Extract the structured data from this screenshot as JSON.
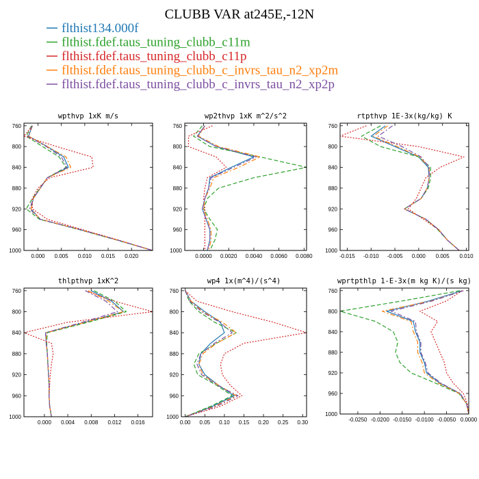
{
  "figure": {
    "title": "CLUBB VAR at245E,-12N"
  },
  "legend": [
    {
      "label": "flthist134.000f",
      "color": "#1f77b4",
      "dash": "solid"
    },
    {
      "label": "flthist.fdef.taus_tuning_clubb_c11m",
      "color": "#2ca02c",
      "dash": "dashed"
    },
    {
      "label": "flthist.fdef.taus_tuning_clubb_c11p",
      "color": "#d62728",
      "dash": "dotted"
    },
    {
      "label": "flthist.fdef.taus_tuning_clubb_c_invrs_tau_n2_xp2m",
      "color": "#ff7f0e",
      "dash": "dashdot"
    },
    {
      "label": "flthist.fdef.taus_tuning_clubb_c_invrs_tau_n2_xp2p",
      "color": "#7b4fa0",
      "dash": "dashdot"
    }
  ],
  "chart_data": [
    {
      "type": "line",
      "title": "wpthvp  1xK m/s",
      "y": [
        760,
        780,
        800,
        820,
        840,
        860,
        880,
        900,
        920,
        940,
        960,
        980,
        1000
      ],
      "xlim": [
        -0.003,
        0.0245
      ],
      "ylim": [
        1000,
        755
      ],
      "xticks": [
        0.0,
        0.005,
        0.01,
        0.015,
        0.02
      ],
      "xtick_labels": [
        "0.000",
        "0.005",
        "0.010",
        "0.015",
        "0.020"
      ],
      "yticks": [
        760,
        800,
        840,
        880,
        920,
        960,
        1000
      ],
      "series": [
        {
          "values": [
            -0.0012,
            -0.002,
            0.002,
            0.0055,
            0.0065,
            0.002,
            0.0005,
            -0.001,
            -0.0015,
            0.0005,
            0.009,
            0.017,
            0.0245
          ]
        },
        {
          "values": [
            -0.0014,
            -0.0025,
            0.001,
            0.0045,
            0.006,
            0.002,
            0.0004,
            -0.0012,
            -0.0025,
            0.0003,
            0.0088,
            0.0168,
            0.0245
          ]
        },
        {
          "values": [
            -0.0012,
            -0.003,
            0.004,
            0.0115,
            0.0118,
            0.0025,
            0.0,
            -0.0012,
            -0.0012,
            0.002,
            0.0095,
            0.0172,
            0.0245
          ]
        },
        {
          "values": [
            -0.0012,
            -0.002,
            0.002,
            0.006,
            0.007,
            0.002,
            0.0005,
            -0.001,
            -0.0015,
            0.0005,
            0.009,
            0.017,
            0.0245
          ]
        },
        {
          "values": [
            -0.0012,
            -0.0022,
            0.0018,
            0.005,
            0.0062,
            0.002,
            0.0005,
            -0.001,
            -0.0018,
            0.0005,
            0.009,
            0.017,
            0.0245
          ]
        }
      ]
    },
    {
      "type": "line",
      "title": "wp2thvp  1xK m^2/s^2",
      "y": [
        760,
        780,
        800,
        820,
        840,
        860,
        880,
        900,
        920,
        940,
        960,
        980,
        1000
      ],
      "xlim": [
        -0.0015,
        0.0082
      ],
      "ylim": [
        1000,
        755
      ],
      "xticks": [
        0.0,
        0.002,
        0.004,
        0.006,
        0.008
      ],
      "xtick_labels": [
        "0.0000",
        "0.0020",
        "0.0040",
        "0.0060",
        "0.0080"
      ],
      "yticks": [
        760,
        800,
        840,
        880,
        920,
        960,
        1000
      ],
      "series": [
        {
          "values": [
            0.0001,
            -0.0005,
            0.001,
            0.004,
            0.0022,
            0.0005,
            0.0004,
            0.0001,
            -0.0001,
            0.0002,
            0.0005,
            0.0005,
            0.0003
          ]
        },
        {
          "values": [
            -0.0001,
            -0.0008,
            0.0005,
            0.0045,
            0.0082,
            0.004,
            0.0012,
            0.0003,
            0.0,
            0.0005,
            0.0011,
            0.0009,
            0.0005
          ]
        },
        {
          "values": [
            0.0007,
            -0.0012,
            -0.0012,
            0.001,
            0.0018,
            0.0003,
            0.0001,
            0.0,
            0.0001,
            0.0001,
            0.0001,
            0.0001,
            0.0001
          ]
        },
        {
          "values": [
            0.0001,
            -0.0004,
            0.0012,
            0.0045,
            0.0028,
            0.0008,
            0.0005,
            0.0001,
            0.0,
            0.0003,
            0.0006,
            0.0006,
            0.0004
          ]
        },
        {
          "values": [
            0.0001,
            -0.0005,
            0.001,
            0.0042,
            0.0024,
            0.0006,
            0.0004,
            0.0001,
            -0.0001,
            0.0002,
            0.0005,
            0.0005,
            0.0003
          ]
        }
      ]
    },
    {
      "type": "line",
      "title": "rtpthvp  1E-3x(kg/kg) K",
      "y": [
        760,
        780,
        800,
        820,
        840,
        860,
        880,
        900,
        920,
        940,
        960,
        980,
        1000
      ],
      "xlim": [
        -0.0165,
        0.0105
      ],
      "ylim": [
        1000,
        755
      ],
      "xticks": [
        -0.015,
        -0.01,
        -0.005,
        0.0,
        0.005,
        0.01
      ],
      "xtick_labels": [
        "-0.015",
        "-0.010",
        "-0.005",
        "0.000",
        "0.005",
        "0.010"
      ],
      "yticks": [
        760,
        800,
        840,
        880,
        920,
        960,
        1000
      ],
      "series": [
        {
          "values": [
            -0.007,
            -0.01,
            -0.005,
            0.0,
            0.002,
            0.0022,
            0.0018,
            0.0005,
            -0.003,
            0.0015,
            0.0042,
            0.006,
            0.0085
          ]
        },
        {
          "values": [
            -0.008,
            -0.012,
            -0.008,
            0.0,
            0.0025,
            0.0025,
            0.002,
            0.0005,
            -0.003,
            0.0015,
            0.004,
            0.006,
            0.0085
          ]
        },
        {
          "values": [
            -0.011,
            -0.0165,
            0.0,
            0.0095,
            0.0045,
            0.0015,
            0.0005,
            -0.0005,
            -0.0022,
            0.001,
            0.0042,
            0.006,
            0.0085
          ]
        },
        {
          "values": [
            -0.0065,
            -0.0095,
            -0.0045,
            0.0002,
            0.0022,
            0.0022,
            0.0018,
            0.0005,
            -0.003,
            0.0015,
            0.0042,
            0.006,
            0.0085
          ]
        },
        {
          "values": [
            -0.0055,
            -0.0085,
            -0.0035,
            0.0005,
            0.0022,
            0.0022,
            0.0018,
            0.0005,
            -0.003,
            0.0015,
            0.0042,
            0.006,
            0.0085
          ]
        }
      ]
    },
    {
      "type": "line",
      "title": "thlpthvp  1xK^2",
      "y": [
        760,
        780,
        800,
        820,
        840,
        860,
        880,
        900,
        920,
        940,
        960,
        980,
        1000
      ],
      "xlim": [
        -0.0035,
        0.0185
      ],
      "ylim": [
        1000,
        755
      ],
      "xticks": [
        0.0,
        0.004,
        0.008,
        0.012,
        0.016
      ],
      "xtick_labels": [
        "0.000",
        "0.004",
        "0.008",
        "0.012",
        "0.016"
      ],
      "yticks": [
        760,
        800,
        840,
        880,
        920,
        960,
        1000
      ],
      "series": [
        {
          "values": [
            0.008,
            0.0115,
            0.0135,
            0.007,
            0.0002,
            0.0003,
            0.0005,
            0.0006,
            0.0007,
            0.0008,
            0.0008,
            0.0009,
            0.0012
          ]
        },
        {
          "values": [
            0.0085,
            0.012,
            0.014,
            0.0075,
            0.0005,
            0.0004,
            0.0005,
            0.0006,
            0.0007,
            0.0008,
            0.0008,
            0.0009,
            0.0012
          ]
        },
        {
          "values": [
            0.007,
            0.012,
            0.0185,
            0.004,
            -0.0035,
            0.0012,
            0.0015,
            0.0012,
            0.001,
            0.0009,
            0.0008,
            0.0009,
            0.0012
          ]
        },
        {
          "values": [
            0.0075,
            0.011,
            0.0135,
            0.007,
            0.0003,
            0.0003,
            0.0005,
            0.0006,
            0.0007,
            0.0008,
            0.0008,
            0.0009,
            0.0012
          ]
        },
        {
          "values": [
            0.007,
            0.0105,
            0.0125,
            0.0065,
            0.0002,
            0.0003,
            0.0005,
            0.0006,
            0.0007,
            0.0008,
            0.0008,
            0.0009,
            0.0012
          ]
        }
      ]
    },
    {
      "type": "line",
      "title": "wp4  1x(m^4)/(s^4)",
      "y": [
        760,
        780,
        800,
        820,
        840,
        860,
        880,
        900,
        920,
        940,
        960,
        980,
        1000
      ],
      "xlim": [
        -0.01,
        0.31
      ],
      "ylim": [
        1000,
        755
      ],
      "xticks": [
        0.0,
        0.05,
        0.1,
        0.15,
        0.2,
        0.25,
        0.3
      ],
      "xtick_labels": [
        "0.00",
        "0.05",
        "0.10",
        "0.15",
        "0.20",
        "0.25",
        "0.30"
      ],
      "yticks": [
        760,
        800,
        840,
        880,
        920,
        960,
        1000
      ],
      "series": [
        {
          "values": [
            0.0,
            0.015,
            0.05,
            0.09,
            0.1,
            0.065,
            0.04,
            0.035,
            0.05,
            0.085,
            0.125,
            0.07,
            0.0
          ]
        },
        {
          "values": [
            0.0,
            0.01,
            0.035,
            0.075,
            0.13,
            0.08,
            0.035,
            0.022,
            0.032,
            0.08,
            0.12,
            0.065,
            0.0
          ]
        },
        {
          "values": [
            0.0,
            0.03,
            0.12,
            0.225,
            0.31,
            0.15,
            0.1,
            0.09,
            0.095,
            0.115,
            0.145,
            0.09,
            0.0
          ]
        },
        {
          "values": [
            0.0,
            0.015,
            0.045,
            0.095,
            0.13,
            0.08,
            0.045,
            0.035,
            0.045,
            0.085,
            0.13,
            0.075,
            0.0
          ]
        },
        {
          "values": [
            0.0,
            0.012,
            0.042,
            0.088,
            0.12,
            0.075,
            0.04,
            0.03,
            0.042,
            0.082,
            0.135,
            0.08,
            0.0
          ]
        }
      ]
    },
    {
      "type": "line",
      "title": "wprtpthlp  1-E-3x(m kg K)/(s kg)",
      "y": [
        760,
        780,
        800,
        820,
        840,
        860,
        880,
        900,
        920,
        940,
        960,
        980,
        1000
      ],
      "xlim": [
        -0.029,
        0.0
      ],
      "ylim": [
        1000,
        755
      ],
      "xticks": [
        -0.025,
        -0.02,
        -0.015,
        -0.01,
        -0.005,
        0.0
      ],
      "xtick_labels": [
        "-0.0250",
        "-0.0200",
        "-0.0150",
        "-0.0100",
        "-0.0050",
        "0.0000"
      ],
      "yticks": [
        760,
        800,
        840,
        880,
        920,
        960,
        1000
      ],
      "series": [
        {
          "values": [
            -0.0015,
            -0.009,
            -0.0185,
            -0.0125,
            -0.012,
            -0.011,
            -0.011,
            -0.01,
            -0.0095,
            -0.0065,
            -0.002,
            -0.0005,
            0.0
          ]
        },
        {
          "values": [
            -0.002,
            -0.015,
            -0.029,
            -0.021,
            -0.017,
            -0.016,
            -0.0165,
            -0.0155,
            -0.013,
            -0.0075,
            -0.0022,
            -0.0005,
            0.0
          ]
        },
        {
          "values": [
            -0.0015,
            -0.005,
            -0.011,
            -0.007,
            -0.0085,
            -0.0075,
            -0.0065,
            -0.0055,
            -0.005,
            -0.0035,
            -0.0012,
            -0.0003,
            0.0
          ]
        },
        {
          "values": [
            -0.0012,
            -0.0085,
            -0.0195,
            -0.013,
            -0.0125,
            -0.0115,
            -0.0115,
            -0.0105,
            -0.01,
            -0.0068,
            -0.0021,
            -0.0005,
            0.0
          ]
        },
        {
          "values": [
            -0.0012,
            -0.0082,
            -0.0175,
            -0.012,
            -0.0118,
            -0.0108,
            -0.0108,
            -0.0098,
            -0.0092,
            -0.0063,
            -0.0019,
            -0.0005,
            0.0
          ]
        }
      ]
    }
  ]
}
